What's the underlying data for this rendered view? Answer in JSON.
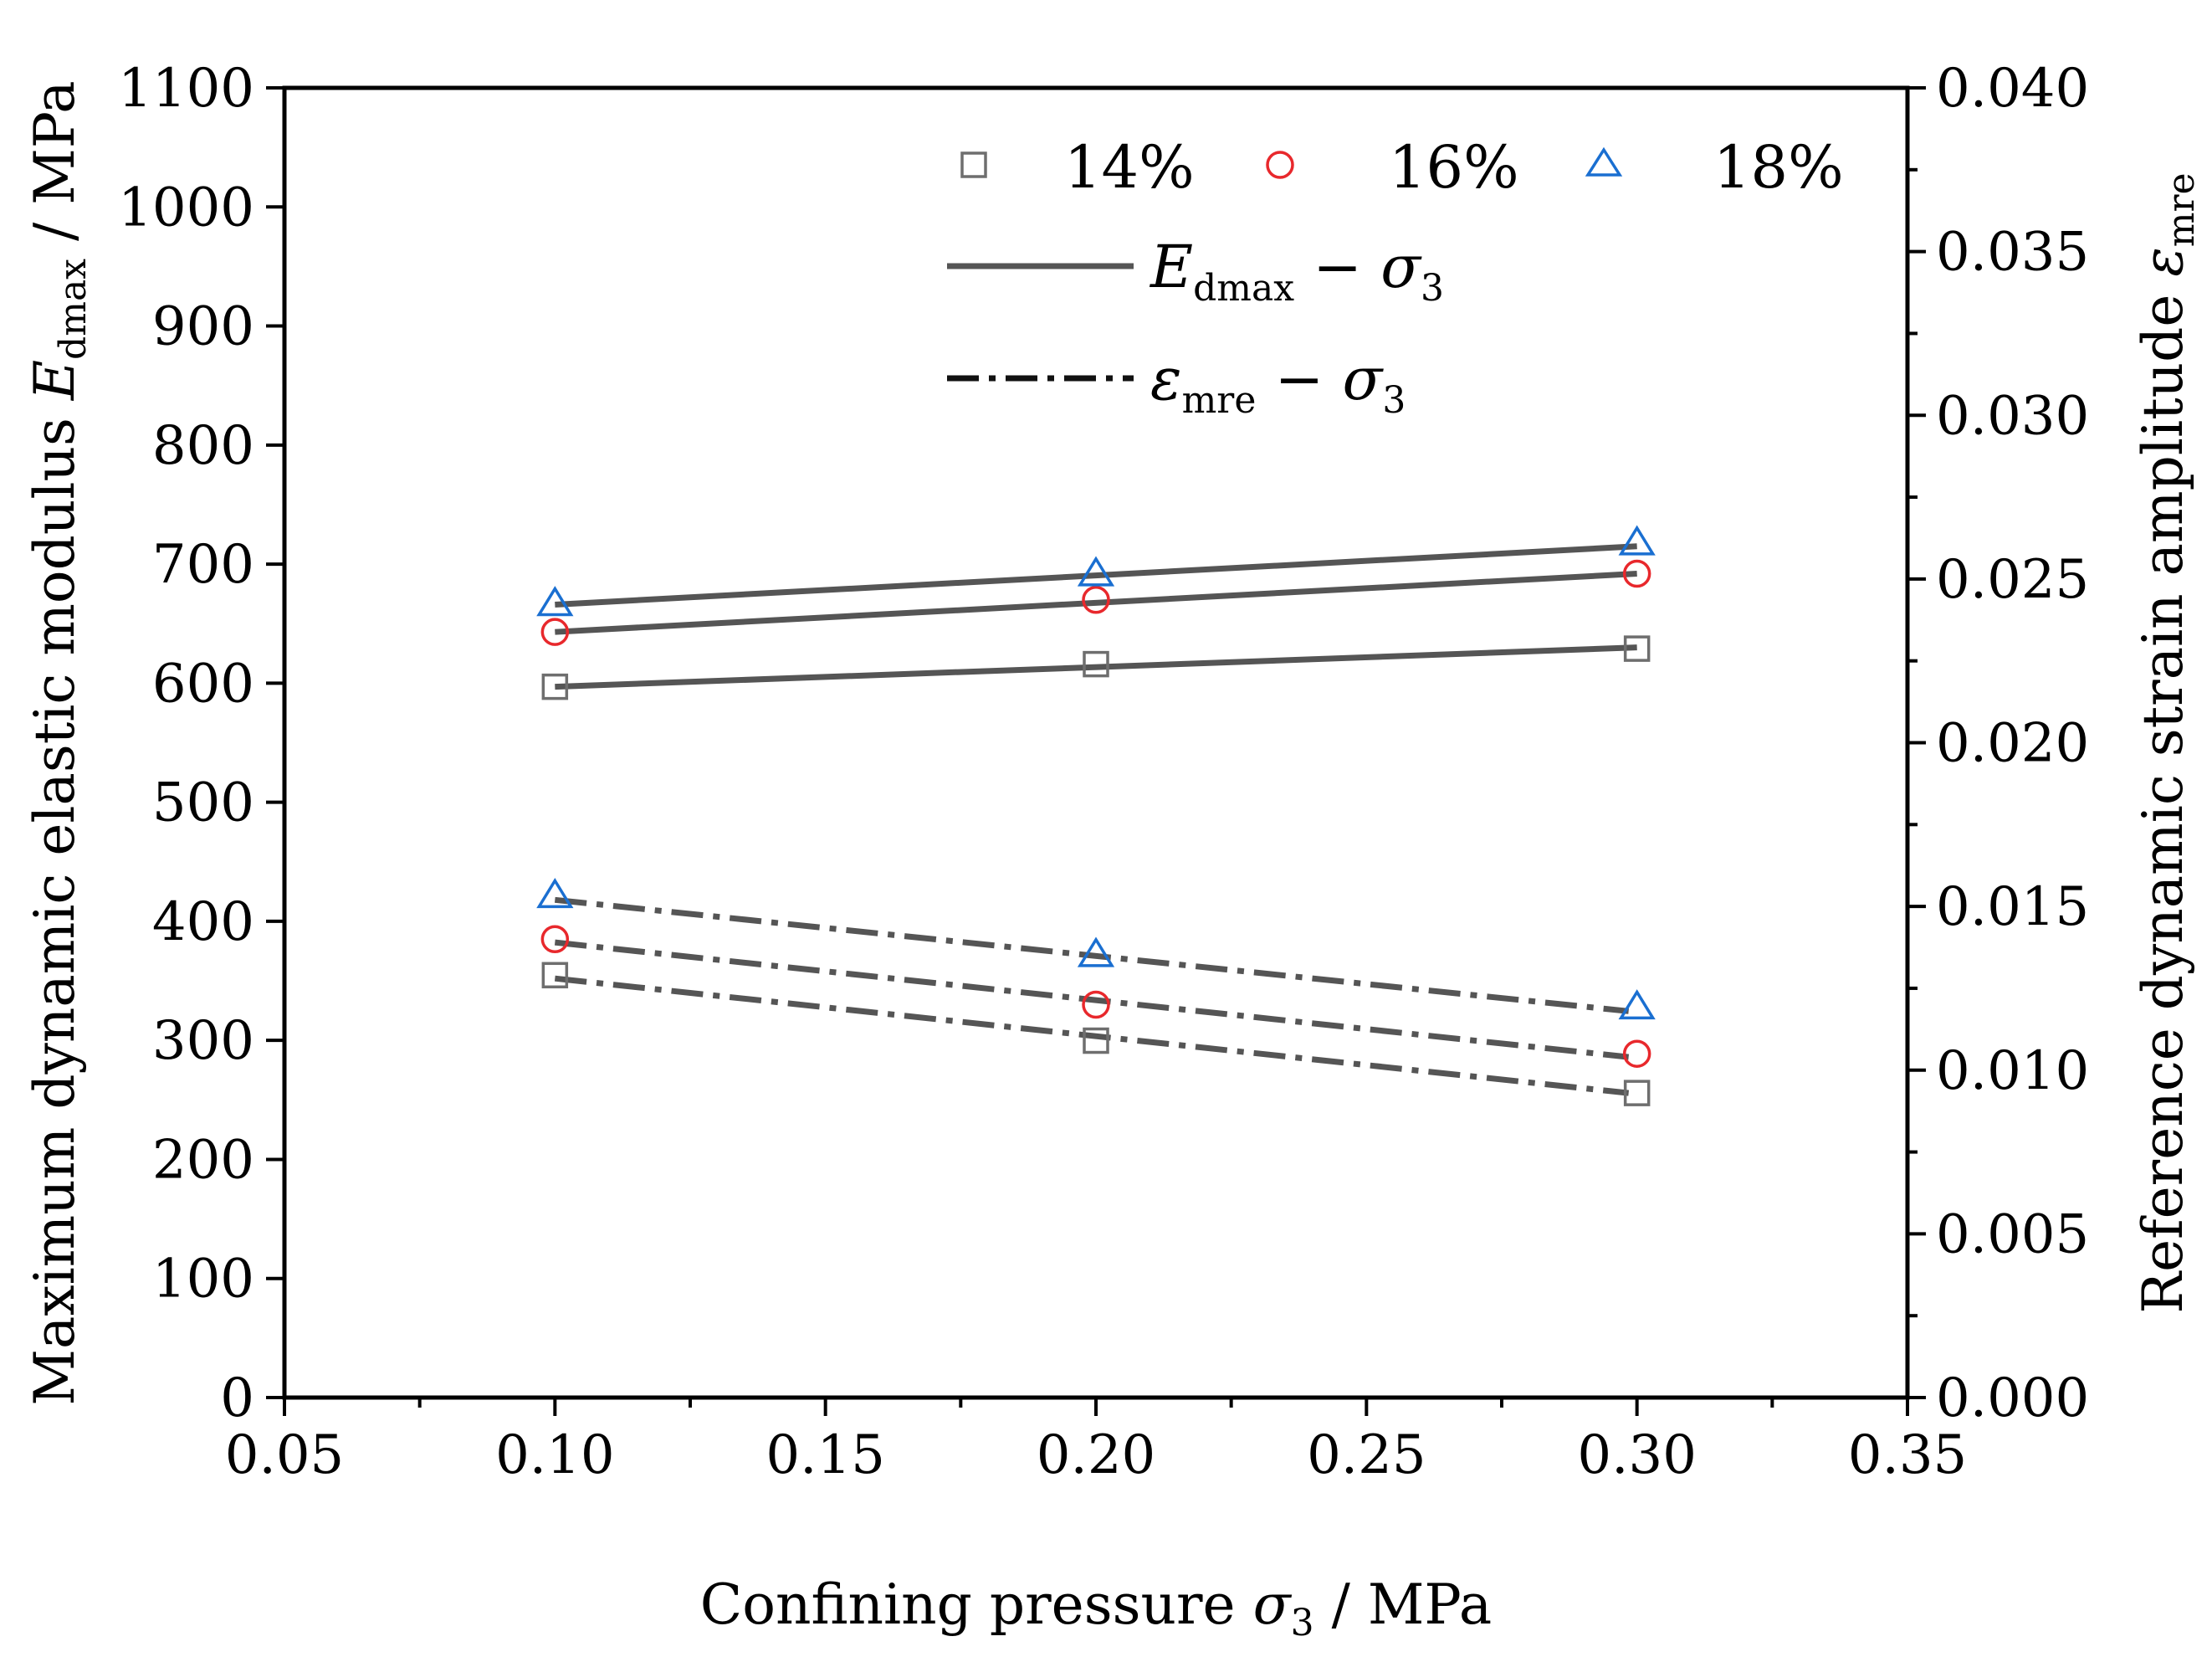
{
  "chart_data": {
    "type": "scatter",
    "x_title": {
      "main": "Confining pressure ",
      "symbol": "σ",
      "sub": "3",
      "unit": " / MPa"
    },
    "y_left_title": {
      "main": "Maximum dynamic elastic modulus ",
      "symbol": "E",
      "sub": "dmax",
      "unit": " / MPa"
    },
    "y_right_title": {
      "main": "Reference dynamic strain amplitude ",
      "symbol": "ε",
      "sub": "mre"
    },
    "xlim": [
      0.05,
      0.35
    ],
    "ylim_left": [
      0,
      1100
    ],
    "ylim_right": [
      0,
      0.04
    ],
    "x_ticks": [
      0.05,
      0.1,
      0.15,
      0.2,
      0.25,
      0.3,
      0.35
    ],
    "x_tick_labels": [
      "0.05",
      "0.10",
      "0.15",
      "0.20",
      "0.25",
      "0.30",
      "0.35"
    ],
    "y_left_ticks": [
      0,
      100,
      200,
      300,
      400,
      500,
      600,
      700,
      800,
      900,
      1000,
      1100
    ],
    "y_left_tick_labels": [
      "0",
      "100",
      "200",
      "300",
      "400",
      "500",
      "600",
      "700",
      "800",
      "900",
      "1000",
      "1100"
    ],
    "y_right_ticks": [
      0,
      0.005,
      0.01,
      0.015,
      0.02,
      0.025,
      0.03,
      0.035,
      0.04
    ],
    "y_right_tick_labels": [
      "0.000",
      "0.005",
      "0.010",
      "0.015",
      "0.020",
      "0.025",
      "0.030",
      "0.035",
      "0.040"
    ],
    "x": [
      0.1,
      0.2,
      0.3
    ],
    "series": [
      {
        "name": "14%",
        "marker": "square",
        "color": "#6e6e6e",
        "edmax": [
          597,
          616,
          629
        ],
        "edmax_fit": [
          597,
          614,
          630
        ],
        "emre": [
          0.0129,
          0.0109,
          0.0093
        ],
        "emre_fit": [
          0.0128,
          0.011,
          0.0093
        ]
      },
      {
        "name": "16%",
        "marker": "circle",
        "color": "#e8282c",
        "edmax": [
          643,
          670,
          692
        ],
        "edmax_fit": [
          643,
          668,
          692
        ],
        "emre": [
          0.014,
          0.012,
          0.0105
        ],
        "emre_fit": [
          0.0139,
          0.0122,
          0.0104
        ]
      },
      {
        "name": "18%",
        "marker": "triangle",
        "color": "#1a6fd1",
        "edmax": [
          666,
          691,
          717
        ],
        "edmax_fit": [
          666,
          690,
          715
        ],
        "emre": [
          0.0153,
          0.0135,
          0.0119
        ],
        "emre_fit": [
          0.0152,
          0.0135,
          0.0118
        ]
      }
    ],
    "fit_line_color": "#555555",
    "legend": {
      "line1": {
        "symbol": "E",
        "sub": "dmax",
        "rest": " − σ",
        "rest_sub": "3"
      },
      "line2": {
        "symbol": "ε",
        "sub": "mre",
        "rest": " − σ",
        "rest_sub": "3"
      }
    },
    "legend_position": "top-right"
  }
}
